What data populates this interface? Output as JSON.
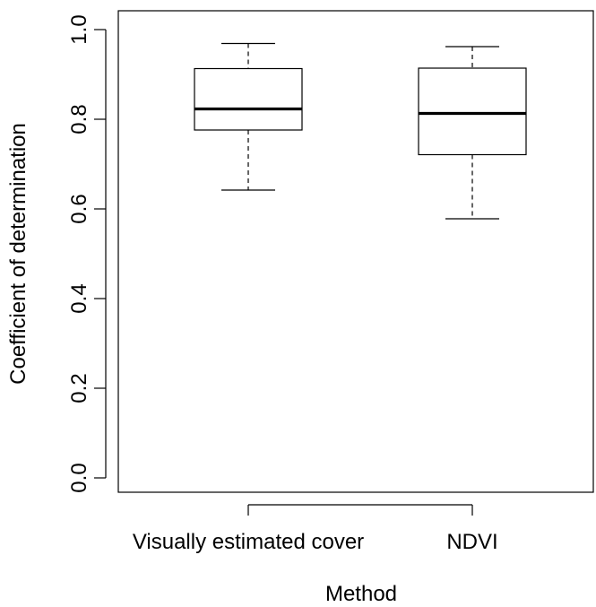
{
  "chart_data": {
    "type": "box",
    "xlabel": "Method",
    "ylabel": "Coefficient of determination",
    "ylim": [
      0.0,
      1.0
    ],
    "yticks": [
      "0.0",
      "0.2",
      "0.4",
      "0.6",
      "0.8",
      "1.0"
    ],
    "grid": false,
    "legend": "none",
    "categories": [
      "Visually estimated cover",
      "NDVI"
    ],
    "boxes": [
      {
        "category": "Visually estimated cover",
        "min": 0.642,
        "q1": 0.776,
        "median": 0.823,
        "q3": 0.913,
        "max": 0.969
      },
      {
        "category": "NDVI",
        "min": 0.578,
        "q1": 0.721,
        "median": 0.813,
        "q3": 0.914,
        "max": 0.962
      }
    ]
  }
}
